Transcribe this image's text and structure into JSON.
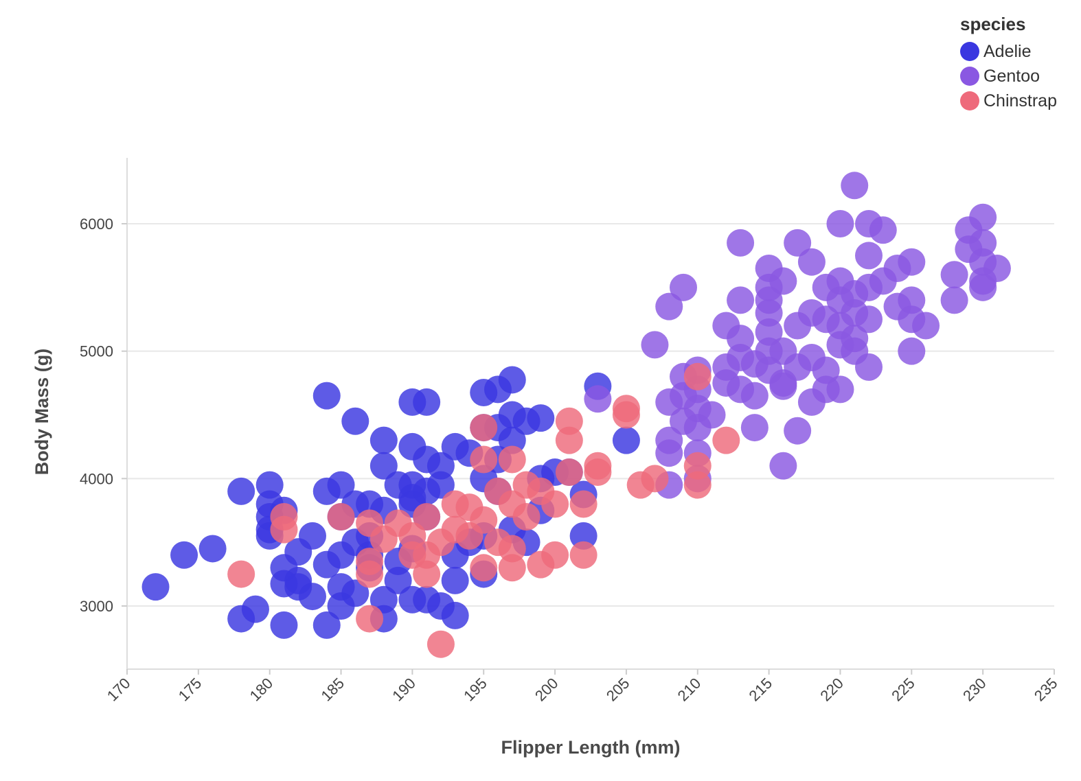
{
  "chart_data": {
    "type": "scatter",
    "xlabel": "Flipper Length (mm)",
    "ylabel": "Body Mass (g)",
    "xlim": [
      170,
      235
    ],
    "ylim": [
      2500,
      6500
    ],
    "x_ticks": [
      "170",
      "175",
      "180",
      "185",
      "190",
      "195",
      "200",
      "205",
      "210",
      "215",
      "220",
      "225",
      "230",
      "235"
    ],
    "y_ticks": [
      "3000",
      "4000",
      "5000",
      "6000"
    ],
    "grid": "horizontal",
    "legend": {
      "title": "species",
      "placement": "top-right"
    },
    "series": [
      {
        "name": "Adelie",
        "color": "#3a37e0",
        "points": [
          [
            172,
            3150
          ],
          [
            174,
            3400
          ],
          [
            176,
            3450
          ],
          [
            178,
            3900
          ],
          [
            178,
            2900
          ],
          [
            179,
            2975
          ],
          [
            180,
            3950
          ],
          [
            180,
            3800
          ],
          [
            180,
            3700
          ],
          [
            180,
            3600
          ],
          [
            180,
            3550
          ],
          [
            181,
            3750
          ],
          [
            181,
            3300
          ],
          [
            181,
            3175
          ],
          [
            181,
            2850
          ],
          [
            182,
            3425
          ],
          [
            182,
            3200
          ],
          [
            182,
            3150
          ],
          [
            183,
            3550
          ],
          [
            183,
            3075
          ],
          [
            184,
            4650
          ],
          [
            184,
            3900
          ],
          [
            184,
            3325
          ],
          [
            184,
            2850
          ],
          [
            185,
            3950
          ],
          [
            185,
            3700
          ],
          [
            185,
            3400
          ],
          [
            185,
            3150
          ],
          [
            185,
            3000
          ],
          [
            186,
            4450
          ],
          [
            186,
            3800
          ],
          [
            186,
            3500
          ],
          [
            186,
            3100
          ],
          [
            187,
            3800
          ],
          [
            187,
            3550
          ],
          [
            187,
            3300
          ],
          [
            188,
            4300
          ],
          [
            188,
            4100
          ],
          [
            188,
            3050
          ],
          [
            188,
            2900
          ],
          [
            189,
            3950
          ],
          [
            189,
            3350
          ],
          [
            189,
            3200
          ],
          [
            190,
            4600
          ],
          [
            190,
            4250
          ],
          [
            190,
            3950
          ],
          [
            190,
            3800
          ],
          [
            190,
            3450
          ],
          [
            190,
            3050
          ],
          [
            191,
            4600
          ],
          [
            191,
            4150
          ],
          [
            191,
            3700
          ],
          [
            191,
            3050
          ],
          [
            192,
            4100
          ],
          [
            192,
            3950
          ],
          [
            192,
            3000
          ],
          [
            193,
            4250
          ],
          [
            193,
            3400
          ],
          [
            193,
            3200
          ],
          [
            193,
            2925
          ],
          [
            194,
            4200
          ],
          [
            194,
            3500
          ],
          [
            195,
            4675
          ],
          [
            195,
            4400
          ],
          [
            195,
            4000
          ],
          [
            195,
            3250
          ],
          [
            196,
            4700
          ],
          [
            196,
            4400
          ],
          [
            196,
            4150
          ],
          [
            196,
            3900
          ],
          [
            197,
            4775
          ],
          [
            197,
            4500
          ],
          [
            197,
            4300
          ],
          [
            197,
            3600
          ],
          [
            198,
            4450
          ],
          [
            198,
            3500
          ],
          [
            199,
            4475
          ],
          [
            199,
            4000
          ],
          [
            199,
            3750
          ],
          [
            200,
            4050
          ],
          [
            201,
            4050
          ],
          [
            202,
            3550
          ],
          [
            202,
            3875
          ],
          [
            203,
            4725
          ],
          [
            205,
            4300
          ],
          [
            190,
            3850
          ],
          [
            191,
            3900
          ],
          [
            188,
            3750
          ],
          [
            195,
            3550
          ],
          [
            187,
            3400
          ]
        ]
      },
      {
        "name": "Gentoo",
        "color": "#8a58e2",
        "points": [
          [
            203,
            4625
          ],
          [
            207,
            5050
          ],
          [
            208,
            5350
          ],
          [
            208,
            4600
          ],
          [
            208,
            4300
          ],
          [
            208,
            4200
          ],
          [
            208,
            3950
          ],
          [
            209,
            5500
          ],
          [
            209,
            4800
          ],
          [
            209,
            4650
          ],
          [
            209,
            4450
          ],
          [
            210,
            4850
          ],
          [
            210,
            4700
          ],
          [
            210,
            4550
          ],
          [
            210,
            4400
          ],
          [
            210,
            4200
          ],
          [
            210,
            4000
          ],
          [
            211,
            4500
          ],
          [
            212,
            5200
          ],
          [
            212,
            4875
          ],
          [
            212,
            4750
          ],
          [
            213,
            5850
          ],
          [
            213,
            5400
          ],
          [
            213,
            5100
          ],
          [
            213,
            4950
          ],
          [
            213,
            4700
          ],
          [
            214,
            4900
          ],
          [
            214,
            4650
          ],
          [
            214,
            4400
          ],
          [
            215,
            5650
          ],
          [
            215,
            5500
          ],
          [
            215,
            5400
          ],
          [
            215,
            5300
          ],
          [
            215,
            5150
          ],
          [
            215,
            5000
          ],
          [
            215,
            4850
          ],
          [
            216,
            5550
          ],
          [
            216,
            5000
          ],
          [
            216,
            4750
          ],
          [
            216,
            4725
          ],
          [
            216,
            4100
          ],
          [
            217,
            5850
          ],
          [
            217,
            5200
          ],
          [
            217,
            4875
          ],
          [
            217,
            4375
          ],
          [
            218,
            5700
          ],
          [
            218,
            5300
          ],
          [
            218,
            4950
          ],
          [
            218,
            4600
          ],
          [
            219,
            5500
          ],
          [
            219,
            5250
          ],
          [
            219,
            4850
          ],
          [
            219,
            4700
          ],
          [
            220,
            6000
          ],
          [
            220,
            5550
          ],
          [
            220,
            5400
          ],
          [
            220,
            5200
          ],
          [
            220,
            5050
          ],
          [
            220,
            4700
          ],
          [
            221,
            6300
          ],
          [
            221,
            5450
          ],
          [
            221,
            5300
          ],
          [
            221,
            5100
          ],
          [
            221,
            5000
          ],
          [
            222,
            6000
          ],
          [
            222,
            5750
          ],
          [
            222,
            5500
          ],
          [
            222,
            5250
          ],
          [
            222,
            4875
          ],
          [
            223,
            5950
          ],
          [
            223,
            5550
          ],
          [
            224,
            5650
          ],
          [
            224,
            5350
          ],
          [
            225,
            5700
          ],
          [
            225,
            5400
          ],
          [
            225,
            5250
          ],
          [
            225,
            5000
          ],
          [
            226,
            5200
          ],
          [
            228,
            5600
          ],
          [
            228,
            5400
          ],
          [
            229,
            5950
          ],
          [
            229,
            5800
          ],
          [
            230,
            6050
          ],
          [
            230,
            5850
          ],
          [
            230,
            5700
          ],
          [
            230,
            5550
          ],
          [
            230,
            5500
          ],
          [
            231,
            5650
          ]
        ]
      },
      {
        "name": "Chinstrap",
        "color": "#ee6a7b",
        "points": [
          [
            178,
            3250
          ],
          [
            181,
            3700
          ],
          [
            181,
            3600
          ],
          [
            185,
            3700
          ],
          [
            187,
            3650
          ],
          [
            187,
            3350
          ],
          [
            187,
            3250
          ],
          [
            187,
            2900
          ],
          [
            188,
            3525
          ],
          [
            189,
            3650
          ],
          [
            190,
            3550
          ],
          [
            190,
            3400
          ],
          [
            191,
            3700
          ],
          [
            191,
            3400
          ],
          [
            191,
            3250
          ],
          [
            192,
            3500
          ],
          [
            192,
            2700
          ],
          [
            193,
            3800
          ],
          [
            193,
            3600
          ],
          [
            194,
            3775
          ],
          [
            194,
            3550
          ],
          [
            195,
            4400
          ],
          [
            195,
            4150
          ],
          [
            195,
            3675
          ],
          [
            195,
            3300
          ],
          [
            196,
            3900
          ],
          [
            196,
            3500
          ],
          [
            197,
            4150
          ],
          [
            197,
            3800
          ],
          [
            197,
            3450
          ],
          [
            197,
            3300
          ],
          [
            198,
            3950
          ],
          [
            198,
            3700
          ],
          [
            199,
            3900
          ],
          [
            199,
            3325
          ],
          [
            200,
            3800
          ],
          [
            200,
            3400
          ],
          [
            201,
            4450
          ],
          [
            201,
            4300
          ],
          [
            201,
            4050
          ],
          [
            202,
            3800
          ],
          [
            202,
            3400
          ],
          [
            203,
            4100
          ],
          [
            203,
            4050
          ],
          [
            205,
            4550
          ],
          [
            205,
            4500
          ],
          [
            206,
            3950
          ],
          [
            207,
            4000
          ],
          [
            210,
            4800
          ],
          [
            210,
            4100
          ],
          [
            210,
            3950
          ],
          [
            212,
            4300
          ]
        ]
      }
    ]
  }
}
